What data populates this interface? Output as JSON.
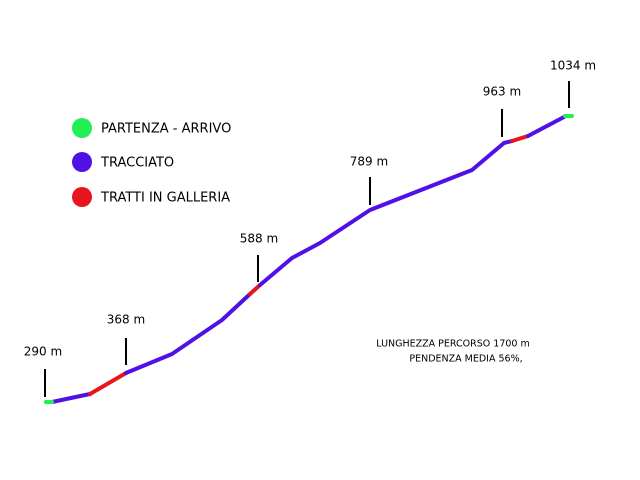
{
  "legend": [
    {
      "label": "PARTENZA - ARRIVO"
    },
    {
      "label": "TRACCIATO"
    },
    {
      "label": "TRATTI IN GALLERIA"
    }
  ],
  "elevations": [
    "290 m",
    "368 m",
    "588 m",
    "789 m",
    "963 m",
    "1034 m"
  ],
  "info": {
    "length": "LUNGHEZZA PERCORSO 1700 m",
    "slope": "PENDENZA MEDIA 56%,"
  }
}
